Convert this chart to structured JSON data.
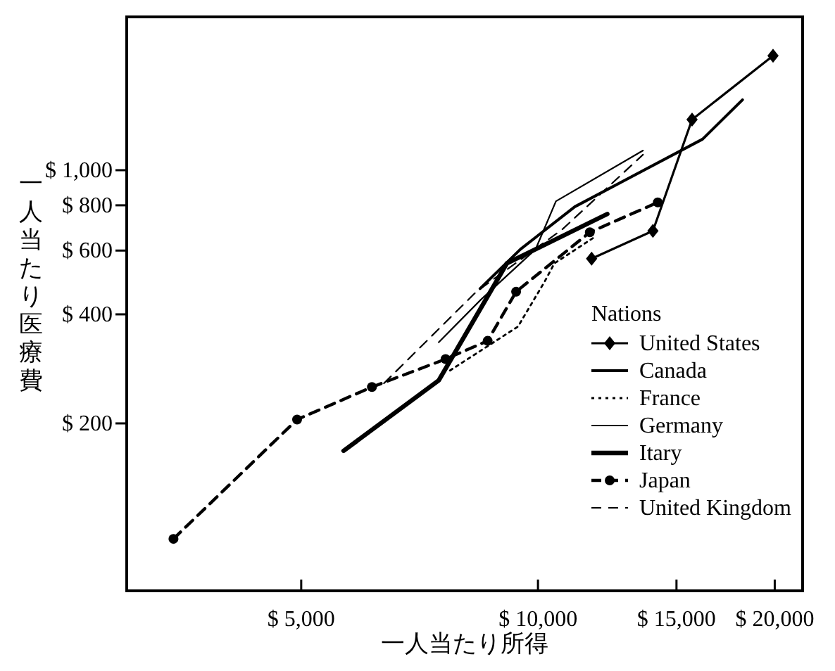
{
  "chart_data": {
    "type": "line",
    "xlabel": "一人当たり所得",
    "ylabel": "一人当たり医療費",
    "legend_title": "Nations",
    "legend": "bottom right",
    "log": "xy",
    "grid": false,
    "xlim": [
      3000,
      21700
    ],
    "ylim": [
      69,
      2650
    ],
    "xticks": [
      {
        "value": 5000,
        "label": "$ 5,000"
      },
      {
        "value": 10000,
        "label": "$ 10,000"
      },
      {
        "value": 15000,
        "label": "$ 15,000"
      },
      {
        "value": 20000,
        "label": "$ 20,000"
      }
    ],
    "yticks": [
      {
        "value": 200,
        "label": "$ 200"
      },
      {
        "value": 400,
        "label": "$ 400"
      },
      {
        "value": 600,
        "label": "$ 600"
      },
      {
        "value": 800,
        "label": "$ 800"
      },
      {
        "value": 1000,
        "label": "$ 1,000"
      }
    ],
    "series": [
      {
        "name": "United States",
        "color": "#000000",
        "marker": "diamond",
        "line_style": "solid",
        "x": [
          11700,
          14000,
          15700,
          19900
        ],
        "values": [
          570,
          680,
          1380,
          2070
        ]
      },
      {
        "name": "Canada",
        "color": "#000000",
        "marker": "none",
        "line_style": "solid",
        "x": [
          8440,
          9500,
          11140,
          16190,
          18200
        ],
        "values": [
          471,
          605,
          793,
          1218,
          1565
        ]
      },
      {
        "name": "France",
        "color": "#000000",
        "marker": "none",
        "line_style": "dotted",
        "x": [
          7730,
          9430,
          10200,
          10490,
          11830
        ],
        "values": [
          280,
          370,
          493,
          553,
          656
        ]
      },
      {
        "name": "Germany",
        "color": "#000000",
        "marker": "none",
        "line_style": "solid",
        "x": [
          7480,
          8450,
          9930,
          10540,
          13600
        ],
        "values": [
          335,
          438,
          605,
          821,
          1133
        ]
      },
      {
        "name": "Itary",
        "color": "#000000",
        "marker": "none",
        "line_style": "solid",
        "x": [
          5660,
          7480,
          9130,
          12250
        ],
        "values": [
          168,
          263,
          553,
          757
        ]
      },
      {
        "name": "Japan",
        "color": "#000000",
        "marker": "circle",
        "line_style": "dashed",
        "x": [
          3440,
          4940,
          6150,
          7630,
          8630,
          9380,
          11640,
          14200
        ],
        "values": [
          96,
          205,
          252,
          301,
          338,
          462,
          674,
          815
        ]
      },
      {
        "name": "United Kingdom",
        "color": "#000000",
        "marker": "none",
        "line_style": "dashed",
        "x": [
          6370,
          8350,
          10750,
          13600
        ],
        "values": [
          258,
          462,
          688,
          1104
        ]
      }
    ]
  }
}
